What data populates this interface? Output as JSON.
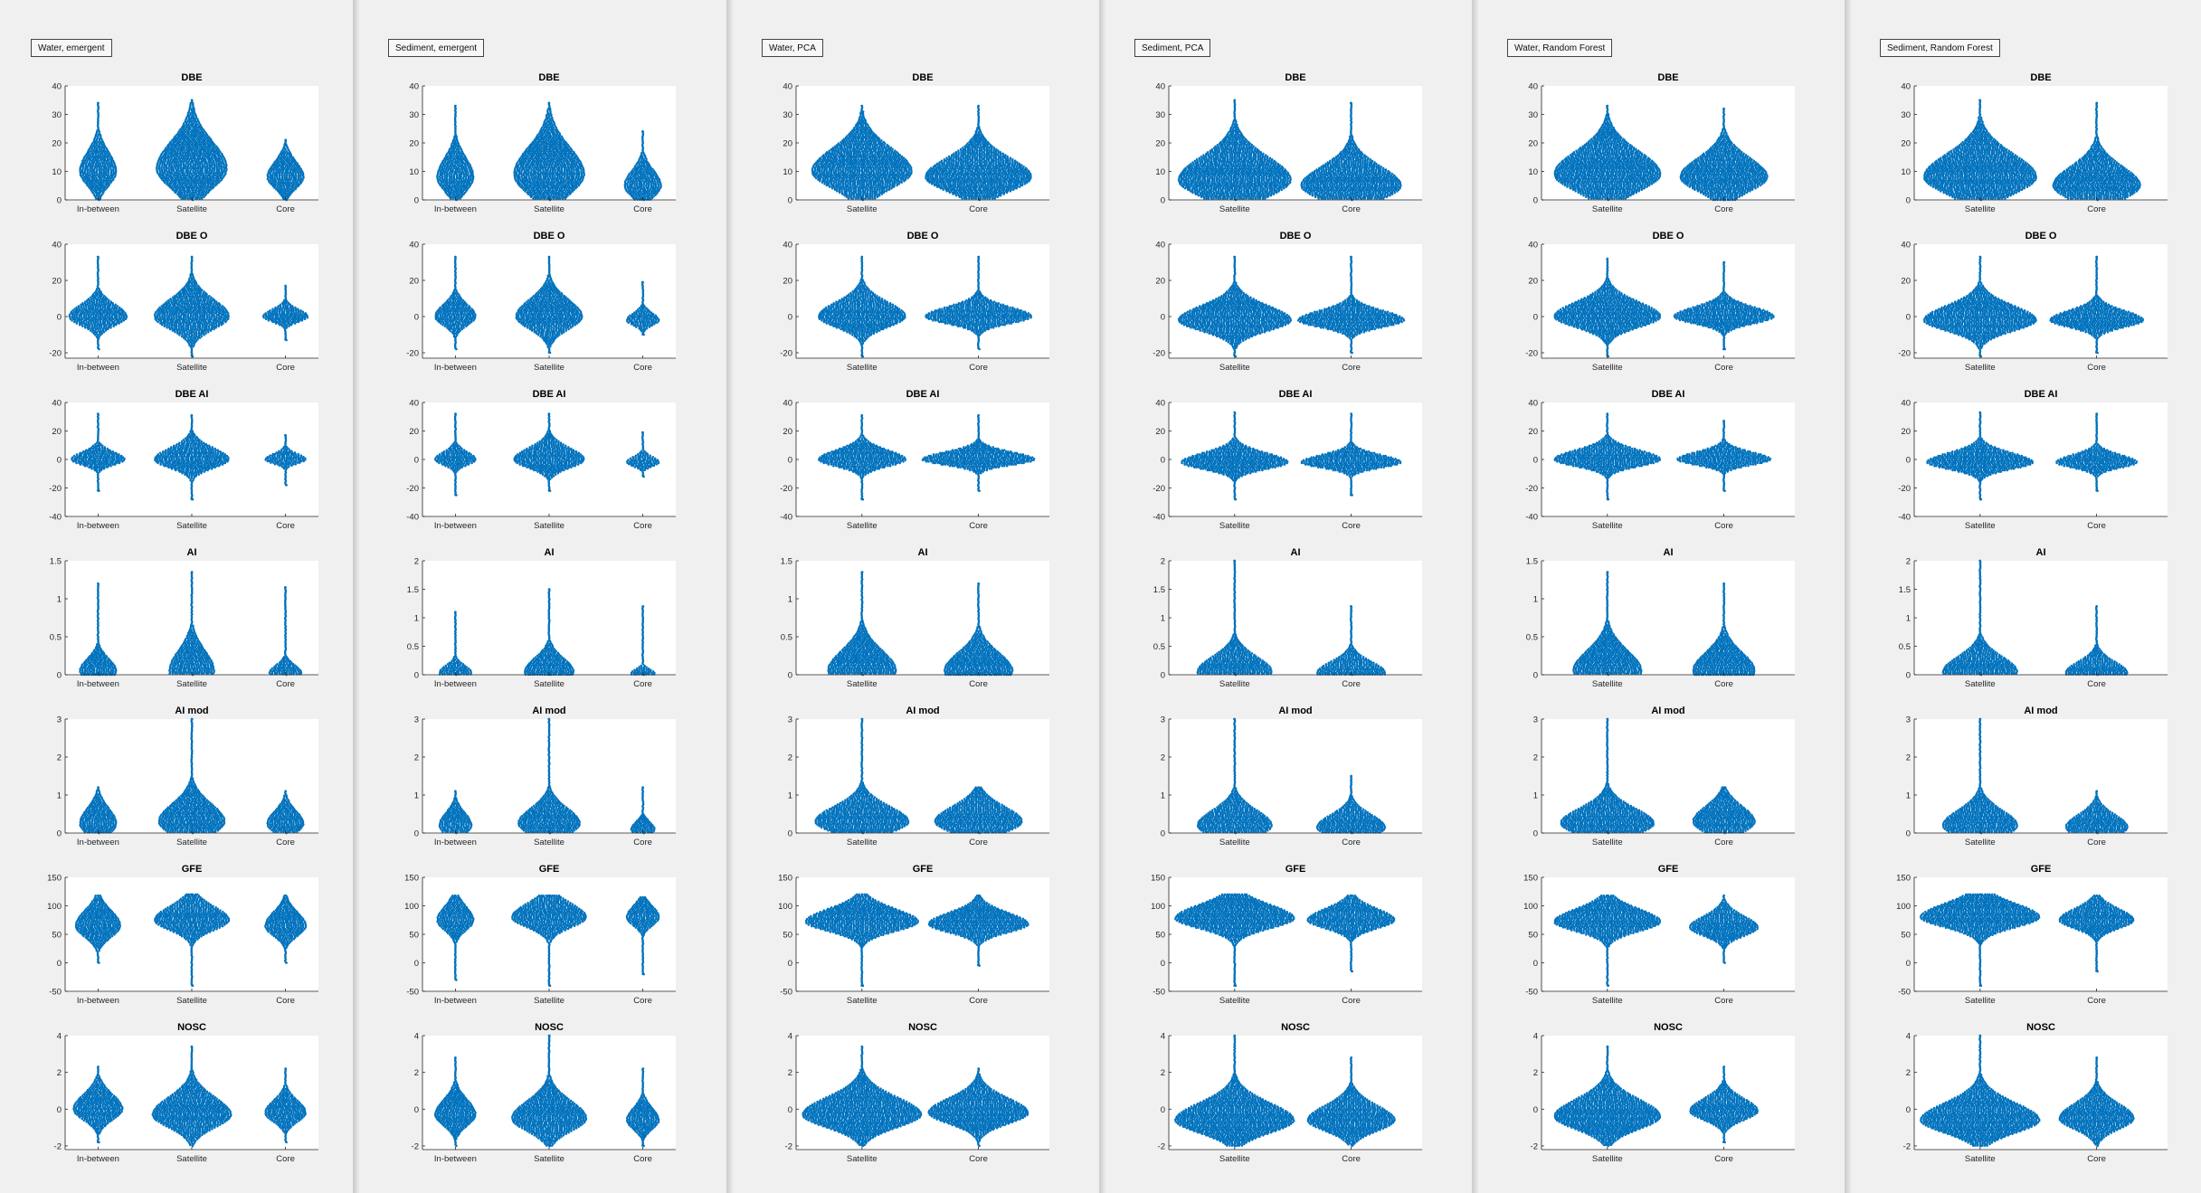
{
  "figures": [
    {
      "label": "Water, emergent",
      "categories": [
        "In-between",
        "Satellite",
        "Core"
      ]
    },
    {
      "label": "Sediment, emergent",
      "categories": [
        "In-between",
        "Satellite",
        "Core"
      ]
    },
    {
      "label": "Water, PCA",
      "categories": [
        "Satellite",
        "Core"
      ]
    },
    {
      "label": "Sediment, PCA",
      "categories": [
        "Satellite",
        "Core"
      ]
    },
    {
      "label": "Water, Random Forest",
      "categories": [
        "Satellite",
        "Core"
      ]
    },
    {
      "label": "Sediment, Random Forest",
      "categories": [
        "Satellite",
        "Core"
      ]
    }
  ],
  "chart_data": {
    "type": "violin",
    "point_color": "#0072BD",
    "panels": [
      {
        "title": "DBE",
        "panel_ylim": [
          0,
          40
        ],
        "yticks": [
          0,
          10,
          20,
          30,
          40
        ]
      },
      {
        "title": "DBE O",
        "panel_ylim": [
          -23,
          40
        ],
        "yticks": [
          -20,
          0,
          20,
          40
        ]
      },
      {
        "title": "DBE AI",
        "panel_ylim": [
          -40,
          40
        ],
        "yticks": [
          -40,
          -20,
          0,
          20,
          40
        ]
      },
      {
        "title": "AI",
        "ylim_by_figure": [
          [
            0,
            1.5
          ],
          [
            0,
            2
          ],
          [
            0,
            1.5
          ],
          [
            0,
            2
          ],
          [
            0,
            1.5
          ],
          [
            0,
            2
          ]
        ],
        "yticks_by_figure": [
          [
            0,
            0.5,
            1,
            1.5
          ],
          [
            0,
            0.5,
            1,
            1.5,
            2
          ],
          [
            0,
            0.5,
            1,
            1.5
          ],
          [
            0,
            0.5,
            1,
            1.5,
            2
          ],
          [
            0,
            0.5,
            1,
            1.5
          ],
          [
            0,
            0.5,
            1,
            1.5,
            2
          ]
        ]
      },
      {
        "title": "AI mod",
        "panel_ylim": [
          0,
          3
        ],
        "yticks": [
          0,
          1,
          2,
          3
        ]
      },
      {
        "title": "GFE",
        "panel_ylim": [
          -50,
          150
        ],
        "yticks": [
          -50,
          0,
          50,
          100,
          150
        ]
      },
      {
        "title": "NOSC",
        "panel_ylim": [
          -2.2,
          4
        ],
        "yticks": [
          -2,
          0,
          2,
          4
        ]
      }
    ],
    "distributions": [
      [
        [
          {
            "min": 0,
            "max": 34,
            "center": 10,
            "spread": 5,
            "width": 0.45
          },
          {
            "min": 0,
            "max": 35,
            "center": 11,
            "spread": 7,
            "width": 0.85
          },
          {
            "min": 0,
            "max": 21,
            "center": 8,
            "spread": 4,
            "width": 0.45
          }
        ],
        [
          {
            "min": -18,
            "max": 33,
            "center": 0,
            "spread": 5,
            "width": 0.7
          },
          {
            "min": -22,
            "max": 33,
            "center": 0,
            "spread": 7,
            "width": 0.9
          },
          {
            "min": -13,
            "max": 17,
            "center": 0,
            "spread": 3,
            "width": 0.55
          }
        ],
        [
          {
            "min": -22,
            "max": 32,
            "center": 0,
            "spread": 4,
            "width": 0.65
          },
          {
            "min": -28,
            "max": 31,
            "center": 0,
            "spread": 6,
            "width": 0.9
          },
          {
            "min": -18,
            "max": 17,
            "center": 0,
            "spread": 3,
            "width": 0.5
          }
        ],
        [
          {
            "min": 0,
            "max": 1.2,
            "center": 0.05,
            "spread": 0.12,
            "width": 0.45
          },
          {
            "min": 0,
            "max": 1.35,
            "center": 0.05,
            "spread": 0.2,
            "width": 0.55
          },
          {
            "min": 0,
            "max": 1.15,
            "center": 0.02,
            "spread": 0.08,
            "width": 0.4
          }
        ],
        [
          {
            "min": 0,
            "max": 1.2,
            "center": 0.25,
            "spread": 0.3,
            "width": 0.45
          },
          {
            "min": 0,
            "max": 3,
            "center": 0.3,
            "spread": 0.35,
            "width": 0.8
          },
          {
            "min": 0,
            "max": 1.1,
            "center": 0.25,
            "spread": 0.25,
            "width": 0.45
          }
        ],
        [
          {
            "min": 0,
            "max": 118,
            "center": 65,
            "spread": 20,
            "width": 0.55
          },
          {
            "min": -40,
            "max": 120,
            "center": 75,
            "spread": 18,
            "width": 0.9
          },
          {
            "min": 0,
            "max": 118,
            "center": 65,
            "spread": 18,
            "width": 0.5
          }
        ],
        [
          {
            "min": -1.8,
            "max": 2.3,
            "center": 0,
            "spread": 0.6,
            "width": 0.6
          },
          {
            "min": -2,
            "max": 3.4,
            "center": -0.3,
            "spread": 0.7,
            "width": 0.95
          },
          {
            "min": -1.8,
            "max": 2.2,
            "center": -0.2,
            "spread": 0.5,
            "width": 0.5
          }
        ]
      ],
      [
        [
          {
            "min": 0,
            "max": 33,
            "center": 8,
            "spread": 5,
            "width": 0.45
          },
          {
            "min": 0,
            "max": 34,
            "center": 9,
            "spread": 7,
            "width": 0.85
          },
          {
            "min": 0,
            "max": 24,
            "center": 5,
            "spread": 4,
            "width": 0.45
          }
        ],
        [
          {
            "min": -18,
            "max": 33,
            "center": 0,
            "spread": 5,
            "width": 0.5
          },
          {
            "min": -20,
            "max": 33,
            "center": 0,
            "spread": 7,
            "width": 0.8
          },
          {
            "min": -10,
            "max": 19,
            "center": -2,
            "spread": 3,
            "width": 0.4
          }
        ],
        [
          {
            "min": -25,
            "max": 32,
            "center": 0,
            "spread": 4,
            "width": 0.5
          },
          {
            "min": -22,
            "max": 32,
            "center": 0,
            "spread": 6,
            "width": 0.85
          },
          {
            "min": -12,
            "max": 19,
            "center": -2,
            "spread": 3,
            "width": 0.4
          }
        ],
        [
          {
            "min": 0,
            "max": 1.1,
            "center": 0.03,
            "spread": 0.1,
            "width": 0.4
          },
          {
            "min": 0,
            "max": 1.5,
            "center": 0.05,
            "spread": 0.18,
            "width": 0.6
          },
          {
            "min": 0,
            "max": 1.2,
            "center": 0.02,
            "spread": 0.06,
            "width": 0.3
          }
        ],
        [
          {
            "min": 0,
            "max": 1.1,
            "center": 0.2,
            "spread": 0.25,
            "width": 0.4
          },
          {
            "min": 0,
            "max": 3,
            "center": 0.25,
            "spread": 0.3,
            "width": 0.75
          },
          {
            "min": 0,
            "max": 1.2,
            "center": 0.1,
            "spread": 0.15,
            "width": 0.3
          }
        ],
        [
          {
            "min": -30,
            "max": 118,
            "center": 75,
            "spread": 18,
            "width": 0.45
          },
          {
            "min": -40,
            "max": 118,
            "center": 80,
            "spread": 18,
            "width": 0.9
          },
          {
            "min": -20,
            "max": 115,
            "center": 80,
            "spread": 15,
            "width": 0.4
          }
        ],
        [
          {
            "min": -2,
            "max": 2.8,
            "center": -0.3,
            "spread": 0.6,
            "width": 0.5
          },
          {
            "min": -2,
            "max": 4,
            "center": -0.5,
            "spread": 0.7,
            "width": 0.9
          },
          {
            "min": -2,
            "max": 2.2,
            "center": -0.6,
            "spread": 0.5,
            "width": 0.4
          }
        ]
      ],
      [
        [
          {
            "min": 0,
            "max": 33,
            "center": 10,
            "spread": 6,
            "width": 0.8
          },
          {
            "min": 0,
            "max": 33,
            "center": 8,
            "spread": 5,
            "width": 0.85
          }
        ],
        [
          {
            "min": -22,
            "max": 33,
            "center": 0,
            "spread": 6,
            "width": 0.7
          },
          {
            "min": -18,
            "max": 33,
            "center": 0,
            "spread": 4,
            "width": 0.85
          }
        ],
        [
          {
            "min": -28,
            "max": 31,
            "center": 0,
            "spread": 5,
            "width": 0.7
          },
          {
            "min": -22,
            "max": 31,
            "center": 0,
            "spread": 4,
            "width": 0.9
          }
        ],
        [
          {
            "min": 0,
            "max": 1.35,
            "center": 0.05,
            "spread": 0.2,
            "width": 0.55
          },
          {
            "min": 0,
            "max": 1.2,
            "center": 0.05,
            "spread": 0.18,
            "width": 0.55
          }
        ],
        [
          {
            "min": 0,
            "max": 3,
            "center": 0.3,
            "spread": 0.3,
            "width": 0.75
          },
          {
            "min": 0,
            "max": 1.2,
            "center": 0.3,
            "spread": 0.3,
            "width": 0.7
          }
        ],
        [
          {
            "min": -40,
            "max": 120,
            "center": 72,
            "spread": 17,
            "width": 0.9
          },
          {
            "min": -5,
            "max": 118,
            "center": 68,
            "spread": 15,
            "width": 0.8
          }
        ],
        [
          {
            "min": -2,
            "max": 3.4,
            "center": -0.3,
            "spread": 0.7,
            "width": 0.95
          },
          {
            "min": -2,
            "max": 2.2,
            "center": -0.2,
            "spread": 0.6,
            "width": 0.8
          }
        ]
      ],
      [
        [
          {
            "min": 0,
            "max": 35,
            "center": 7,
            "spread": 6,
            "width": 0.9
          },
          {
            "min": 0,
            "max": 34,
            "center": 5,
            "spread": 5,
            "width": 0.8
          }
        ],
        [
          {
            "min": -22,
            "max": 33,
            "center": -2,
            "spread": 6,
            "width": 0.9
          },
          {
            "min": -20,
            "max": 33,
            "center": -2,
            "spread": 4,
            "width": 0.85
          }
        ],
        [
          {
            "min": -28,
            "max": 33,
            "center": -2,
            "spread": 5,
            "width": 0.85
          },
          {
            "min": -25,
            "max": 32,
            "center": -2,
            "spread": 4,
            "width": 0.8
          }
        ],
        [
          {
            "min": 0,
            "max": 2,
            "center": 0.05,
            "spread": 0.2,
            "width": 0.6
          },
          {
            "min": 0,
            "max": 1.2,
            "center": 0.03,
            "spread": 0.15,
            "width": 0.55
          }
        ],
        [
          {
            "min": 0,
            "max": 3,
            "center": 0.2,
            "spread": 0.3,
            "width": 0.6
          },
          {
            "min": 0,
            "max": 1.5,
            "center": 0.15,
            "spread": 0.25,
            "width": 0.55
          }
        ],
        [
          {
            "min": -40,
            "max": 120,
            "center": 78,
            "spread": 18,
            "width": 0.95
          },
          {
            "min": -15,
            "max": 118,
            "center": 75,
            "spread": 15,
            "width": 0.7
          }
        ],
        [
          {
            "min": -2,
            "max": 4,
            "center": -0.6,
            "spread": 0.7,
            "width": 0.95
          },
          {
            "min": -2,
            "max": 2.8,
            "center": -0.6,
            "spread": 0.6,
            "width": 0.7
          }
        ]
      ],
      [
        [
          {
            "min": 0,
            "max": 33,
            "center": 9,
            "spread": 6,
            "width": 0.85
          },
          {
            "min": 0,
            "max": 32,
            "center": 8,
            "spread": 5,
            "width": 0.7
          }
        ],
        [
          {
            "min": -22,
            "max": 32,
            "center": 0,
            "spread": 6,
            "width": 0.85
          },
          {
            "min": -18,
            "max": 30,
            "center": 0,
            "spread": 4,
            "width": 0.8
          }
        ],
        [
          {
            "min": -28,
            "max": 32,
            "center": 0,
            "spread": 5,
            "width": 0.85
          },
          {
            "min": -22,
            "max": 27,
            "center": 0,
            "spread": 4,
            "width": 0.75
          }
        ],
        [
          {
            "min": 0,
            "max": 1.35,
            "center": 0.05,
            "spread": 0.2,
            "width": 0.55
          },
          {
            "min": 0,
            "max": 1.2,
            "center": 0.05,
            "spread": 0.18,
            "width": 0.5
          }
        ],
        [
          {
            "min": 0,
            "max": 3,
            "center": 0.25,
            "spread": 0.3,
            "width": 0.75
          },
          {
            "min": 0,
            "max": 1.2,
            "center": 0.3,
            "spread": 0.3,
            "width": 0.5
          }
        ],
        [
          {
            "min": -40,
            "max": 118,
            "center": 72,
            "spread": 17,
            "width": 0.85
          },
          {
            "min": 0,
            "max": 118,
            "center": 62,
            "spread": 15,
            "width": 0.55
          }
        ],
        [
          {
            "min": -2,
            "max": 3.4,
            "center": -0.4,
            "spread": 0.7,
            "width": 0.85
          },
          {
            "min": -1.8,
            "max": 2.3,
            "center": -0.1,
            "spread": 0.5,
            "width": 0.55
          }
        ]
      ],
      [
        [
          {
            "min": 0,
            "max": 35,
            "center": 8,
            "spread": 6,
            "width": 0.9
          },
          {
            "min": 0,
            "max": 34,
            "center": 5,
            "spread": 5,
            "width": 0.7
          }
        ],
        [
          {
            "min": -22,
            "max": 33,
            "center": -2,
            "spread": 6,
            "width": 0.9
          },
          {
            "min": -20,
            "max": 33,
            "center": -2,
            "spread": 4,
            "width": 0.75
          }
        ],
        [
          {
            "min": -28,
            "max": 33,
            "center": -2,
            "spread": 5,
            "width": 0.85
          },
          {
            "min": -22,
            "max": 32,
            "center": -2,
            "spread": 4,
            "width": 0.65
          }
        ],
        [
          {
            "min": 0,
            "max": 2,
            "center": 0.05,
            "spread": 0.2,
            "width": 0.6
          },
          {
            "min": 0,
            "max": 1.2,
            "center": 0.03,
            "spread": 0.15,
            "width": 0.5
          }
        ],
        [
          {
            "min": 0,
            "max": 3,
            "center": 0.2,
            "spread": 0.3,
            "width": 0.6
          },
          {
            "min": 0,
            "max": 1.1,
            "center": 0.15,
            "spread": 0.25,
            "width": 0.5
          }
        ],
        [
          {
            "min": -40,
            "max": 120,
            "center": 80,
            "spread": 18,
            "width": 0.95
          },
          {
            "min": -15,
            "max": 118,
            "center": 75,
            "spread": 15,
            "width": 0.6
          }
        ],
        [
          {
            "min": -2,
            "max": 4,
            "center": -0.6,
            "spread": 0.7,
            "width": 0.95
          },
          {
            "min": -2,
            "max": 2.8,
            "center": -0.5,
            "spread": 0.6,
            "width": 0.6
          }
        ]
      ]
    ]
  }
}
